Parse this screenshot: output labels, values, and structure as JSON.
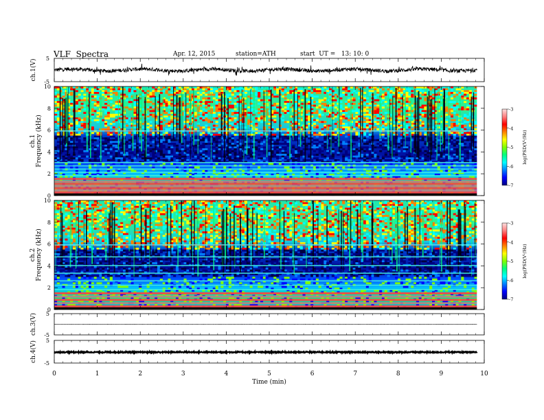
{
  "header": {
    "title": "VLF  Spectra",
    "date": "Apr. 12, 2015",
    "station": "station=ATH",
    "start": "start  UT =   13: 10: 0"
  },
  "chart_data": [
    {
      "type": "line",
      "panel": "ch1-waveform",
      "ylabel": "ch.1(V)",
      "ylim": [
        -5,
        5
      ],
      "yticks": [
        "5",
        "-5"
      ],
      "xlim": [
        0,
        10
      ],
      "baseline": 0,
      "amplitude_typical": 0.8
    },
    {
      "type": "heatmap",
      "panel": "ch1-spectrogram",
      "ylabel": "ch.1",
      "ylabel2": "Frequency (kHz)",
      "ylim": [
        0,
        10
      ],
      "yticks": [
        "0",
        "2",
        "4",
        "6",
        "8",
        "10"
      ],
      "xlim": [
        0,
        9.83
      ],
      "colorbar": {
        "label": "log(PSD(V²/Hz)",
        "range": [
          -7,
          -3
        ],
        "ticks": [
          "-3",
          "-4",
          "-5",
          "-6",
          "-7"
        ]
      },
      "bands_khz": [
        0.1,
        0.3,
        0.5,
        0.7,
        0.9,
        1.1,
        1.3,
        1.55,
        1.8,
        2.1,
        2.4,
        2.7,
        3.0,
        5.9
      ],
      "high_activity_range_khz": [
        5.5,
        10
      ],
      "low_activity_range_khz": [
        3.0,
        5.5
      ]
    },
    {
      "type": "heatmap",
      "panel": "ch2-spectrogram",
      "ylabel": "ch.2",
      "ylabel2": "Frequency (kHz)",
      "ylim": [
        0,
        10
      ],
      "yticks": [
        "0",
        "2",
        "4",
        "6",
        "8",
        "10"
      ],
      "xlim": [
        0,
        9.83
      ],
      "colorbar": {
        "label": "log(PSD(V²/Hz)",
        "range": [
          -7,
          -3
        ],
        "ticks": [
          "-3",
          "-4",
          "-5",
          "-6",
          "-7"
        ]
      },
      "bands_khz": [
        0.1,
        0.3,
        0.6,
        0.9,
        1.2,
        1.5,
        1.8,
        2.2,
        2.6,
        3.3,
        4.0,
        4.8,
        5.9
      ],
      "high_activity_range_khz": [
        5.5,
        10
      ],
      "low_activity_range_khz": [
        3.0,
        5.5
      ]
    },
    {
      "type": "line",
      "panel": "ch3-waveform",
      "ylabel": "ch.3(V)",
      "ylim": [
        -5,
        5
      ],
      "yticks": [
        "5",
        "-5"
      ],
      "xlim": [
        0,
        10
      ],
      "baseline": 0,
      "amplitude_typical": 0.05
    },
    {
      "type": "line",
      "panel": "ch4-waveform",
      "ylabel": "ch.4(V)",
      "ylim": [
        -5,
        5
      ],
      "yticks": [
        "5",
        "-5"
      ],
      "xlim": [
        0,
        10
      ],
      "baseline": -0.2,
      "amplitude_typical": 0.25
    }
  ],
  "xaxis": {
    "label": "Time  (min)",
    "ticks": [
      "0",
      "1",
      "2",
      "3",
      "4",
      "5",
      "6",
      "7",
      "8",
      "9",
      "10"
    ]
  },
  "colors": {
    "scale": [
      "#000080",
      "#0000ff",
      "#0080ff",
      "#00ffff",
      "#00ff80",
      "#80ff00",
      "#ffff00",
      "#ff8000",
      "#ff0000",
      "#ff8080",
      "#ffe0e0"
    ]
  }
}
